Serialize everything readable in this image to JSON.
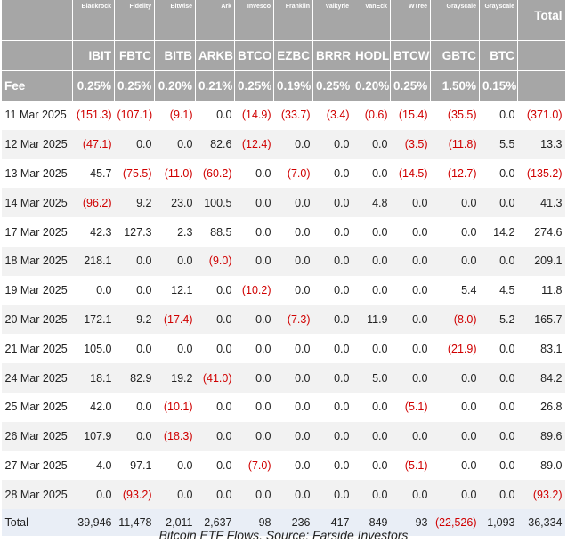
{
  "table": {
    "columns": [
      {
        "issuer": "Blackrock",
        "ticker": "IBIT",
        "fee": "0.25%"
      },
      {
        "issuer": "Fidelity",
        "ticker": "FBTC",
        "fee": "0.25%"
      },
      {
        "issuer": "Bitwise",
        "ticker": "BITB",
        "fee": "0.20%"
      },
      {
        "issuer": "Ark",
        "ticker": "ARKB",
        "fee": "0.21%"
      },
      {
        "issuer": "Invesco",
        "ticker": "BTCO",
        "fee": "0.25%"
      },
      {
        "issuer": "Franklin",
        "ticker": "EZBC",
        "fee": "0.19%"
      },
      {
        "issuer": "Valkyrie",
        "ticker": "BRRR",
        "fee": "0.25%"
      },
      {
        "issuer": "VanEck",
        "ticker": "HODL",
        "fee": "0.20%"
      },
      {
        "issuer": "WTree",
        "ticker": "BTCW",
        "fee": "0.25%"
      },
      {
        "issuer": "Grayscale",
        "ticker": "GBTC",
        "fee": "1.50%"
      },
      {
        "issuer": "Grayscale",
        "ticker": "BTC",
        "fee": "0.15%"
      }
    ],
    "total_header": "Total",
    "fee_label": "Fee",
    "rows": [
      {
        "date": "11 Mar 2025",
        "cells": [
          "(151.3)",
          "(107.1)",
          "(9.1)",
          "0.0",
          "(14.9)",
          "(33.7)",
          "(3.4)",
          "(0.6)",
          "(15.4)",
          "(35.5)",
          "0.0",
          "(371.0)"
        ]
      },
      {
        "date": "12 Mar 2025",
        "cells": [
          "(47.1)",
          "0.0",
          "0.0",
          "82.6",
          "(12.4)",
          "0.0",
          "0.0",
          "0.0",
          "(3.5)",
          "(11.8)",
          "5.5",
          "13.3"
        ]
      },
      {
        "date": "13 Mar 2025",
        "cells": [
          "45.7",
          "(75.5)",
          "(11.0)",
          "(60.2)",
          "0.0",
          "(7.0)",
          "0.0",
          "0.0",
          "(14.5)",
          "(12.7)",
          "0.0",
          "(135.2)"
        ]
      },
      {
        "date": "14 Mar 2025",
        "cells": [
          "(96.2)",
          "9.2",
          "23.0",
          "100.5",
          "0.0",
          "0.0",
          "0.0",
          "4.8",
          "0.0",
          "0.0",
          "0.0",
          "41.3"
        ]
      },
      {
        "date": "17 Mar 2025",
        "cells": [
          "42.3",
          "127.3",
          "2.3",
          "88.5",
          "0.0",
          "0.0",
          "0.0",
          "0.0",
          "0.0",
          "0.0",
          "14.2",
          "274.6"
        ]
      },
      {
        "date": "18 Mar 2025",
        "cells": [
          "218.1",
          "0.0",
          "0.0",
          "(9.0)",
          "0.0",
          "0.0",
          "0.0",
          "0.0",
          "0.0",
          "0.0",
          "0.0",
          "209.1"
        ]
      },
      {
        "date": "19 Mar 2025",
        "cells": [
          "0.0",
          "0.0",
          "12.1",
          "0.0",
          "(10.2)",
          "0.0",
          "0.0",
          "0.0",
          "0.0",
          "5.4",
          "4.5",
          "11.8"
        ]
      },
      {
        "date": "20 Mar 2025",
        "cells": [
          "172.1",
          "9.2",
          "(17.4)",
          "0.0",
          "0.0",
          "(7.3)",
          "0.0",
          "11.9",
          "0.0",
          "(8.0)",
          "5.2",
          "165.7"
        ]
      },
      {
        "date": "21 Mar 2025",
        "cells": [
          "105.0",
          "0.0",
          "0.0",
          "0.0",
          "0.0",
          "0.0",
          "0.0",
          "0.0",
          "0.0",
          "(21.9)",
          "0.0",
          "83.1"
        ]
      },
      {
        "date": "24 Mar 2025",
        "cells": [
          "18.1",
          "82.9",
          "19.2",
          "(41.0)",
          "0.0",
          "0.0",
          "0.0",
          "5.0",
          "0.0",
          "0.0",
          "0.0",
          "84.2"
        ]
      },
      {
        "date": "25 Mar 2025",
        "cells": [
          "42.0",
          "0.0",
          "(10.1)",
          "0.0",
          "0.0",
          "0.0",
          "0.0",
          "0.0",
          "(5.1)",
          "0.0",
          "0.0",
          "26.8"
        ]
      },
      {
        "date": "26 Mar 2025",
        "cells": [
          "107.9",
          "0.0",
          "(18.3)",
          "0.0",
          "0.0",
          "0.0",
          "0.0",
          "0.0",
          "0.0",
          "0.0",
          "0.0",
          "89.6"
        ]
      },
      {
        "date": "27 Mar 2025",
        "cells": [
          "4.0",
          "97.1",
          "0.0",
          "0.0",
          "(7.0)",
          "0.0",
          "0.0",
          "0.0",
          "(5.1)",
          "0.0",
          "0.0",
          "89.0"
        ]
      },
      {
        "date": "28 Mar 2025",
        "cells": [
          "0.0",
          "(93.2)",
          "0.0",
          "0.0",
          "0.0",
          "0.0",
          "0.0",
          "0.0",
          "0.0",
          "0.0",
          "0.0",
          "(93.2)"
        ]
      }
    ],
    "total_row": {
      "label": "Total",
      "cells": [
        "39,946",
        "11,478",
        "2,011",
        "2,637",
        "98",
        "236",
        "417",
        "849",
        "93",
        "(22,526)",
        "1,093",
        "36,334"
      ]
    }
  },
  "caption": "Bitcoin ETF Flows. Source: Farside Investors"
}
